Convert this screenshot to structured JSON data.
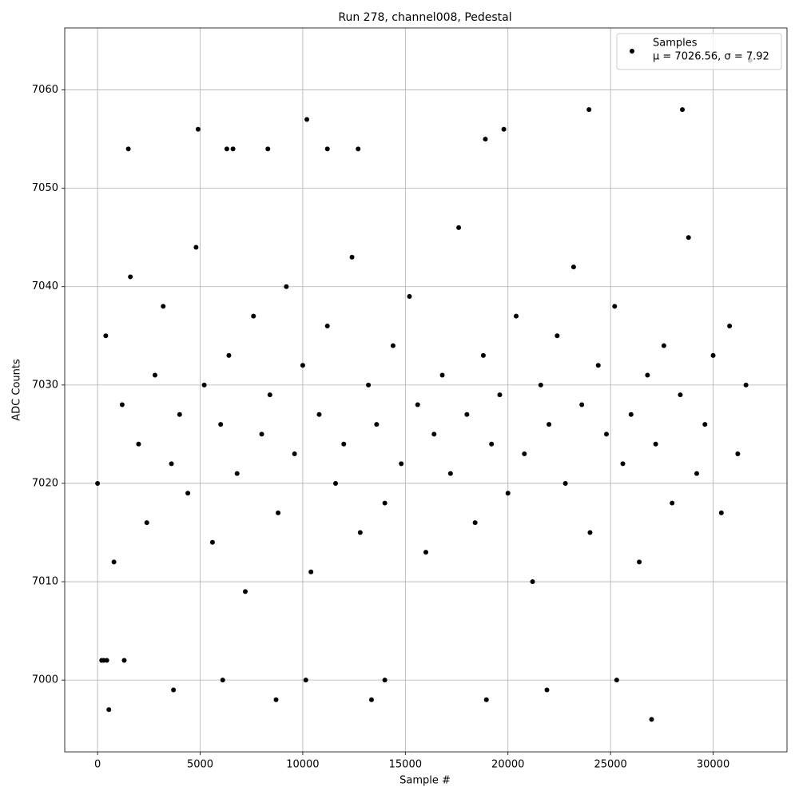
{
  "chart_data": {
    "type": "scatter",
    "title": "Run 278, channel008, Pedestal",
    "x_label": "Sample #",
    "y_label": "ADC Counts",
    "xlim": [
      -1600,
      33600
    ],
    "ylim": [
      6992.7,
      7066.3
    ],
    "xticks": [
      0,
      5000,
      10000,
      15000,
      20000,
      25000,
      30000
    ],
    "yticks": [
      7000,
      7010,
      7020,
      7030,
      7040,
      7050,
      7060
    ],
    "grid": true,
    "legend_position": "upper right",
    "legend_note": "μ = 7026.56, σ = 7.92",
    "series": [
      {
        "name": "Samples",
        "color": "#000000",
        "x": [
          0,
          400,
          800,
          1200,
          1600,
          2000,
          2400,
          2800,
          3200,
          3600,
          4000,
          4400,
          4800,
          5200,
          5600,
          6000,
          6400,
          6800,
          7200,
          7600,
          8000,
          8400,
          8800,
          9200,
          9600,
          10000,
          10400,
          10800,
          11200,
          11600,
          12000,
          12400,
          12800,
          13200,
          13600,
          14000,
          14400,
          14800,
          15200,
          15600,
          16000,
          16400,
          16800,
          17200,
          17600,
          18000,
          18400,
          18800,
          19200,
          19600,
          20000,
          20400,
          20800,
          21200,
          21600,
          22000,
          22400,
          22800,
          23200,
          23600,
          24000,
          24400,
          24800,
          25200,
          25600,
          26000,
          26400,
          26800,
          27200,
          27600,
          28000,
          28400,
          28800,
          29200,
          29600,
          30000,
          30400,
          30800,
          31200,
          31600,
          550,
          3700,
          6100,
          8700,
          10150,
          13350,
          14000,
          18950,
          21900,
          25300,
          27000,
          31800,
          10200,
          23950,
          28500,
          4900,
          19800,
          1500,
          6300,
          6600,
          8300,
          11200,
          12700,
          18900,
          200,
          300,
          450,
          1300
        ],
        "values": [
          7020,
          7035,
          7012,
          7028,
          7041,
          7024,
          7016,
          7031,
          7038,
          7022,
          7027,
          7019,
          7044,
          7030,
          7014,
          7026,
          7033,
          7021,
          7009,
          7037,
          7025,
          7029,
          7017,
          7040,
          7023,
          7032,
          7011,
          7027,
          7036,
          7020,
          7024,
          7043,
          7015,
          7030,
          7026,
          7018,
          7034,
          7022,
          7039,
          7028,
          7013,
          7025,
          7031,
          7021,
          7046,
          7027,
          7016,
          7033,
          7024,
          7029,
          7019,
          7037,
          7023,
          7010,
          7030,
          7026,
          7035,
          7020,
          7042,
          7028,
          7015,
          7032,
          7025,
          7038,
          7022,
          7027,
          7012,
          7031,
          7024,
          7034,
          7018,
          7029,
          7045,
          7021,
          7026,
          7033,
          7017,
          7036,
          7023,
          7030,
          6997,
          6999,
          7000,
          6998,
          7000,
          6998,
          7000,
          6998,
          6999,
          7000,
          6996,
          7063,
          7057,
          7058,
          7058,
          7056,
          7056,
          7054,
          7054,
          7054,
          7054,
          7054,
          7054,
          7055,
          7002,
          7002,
          7002,
          7002
        ]
      }
    ]
  }
}
